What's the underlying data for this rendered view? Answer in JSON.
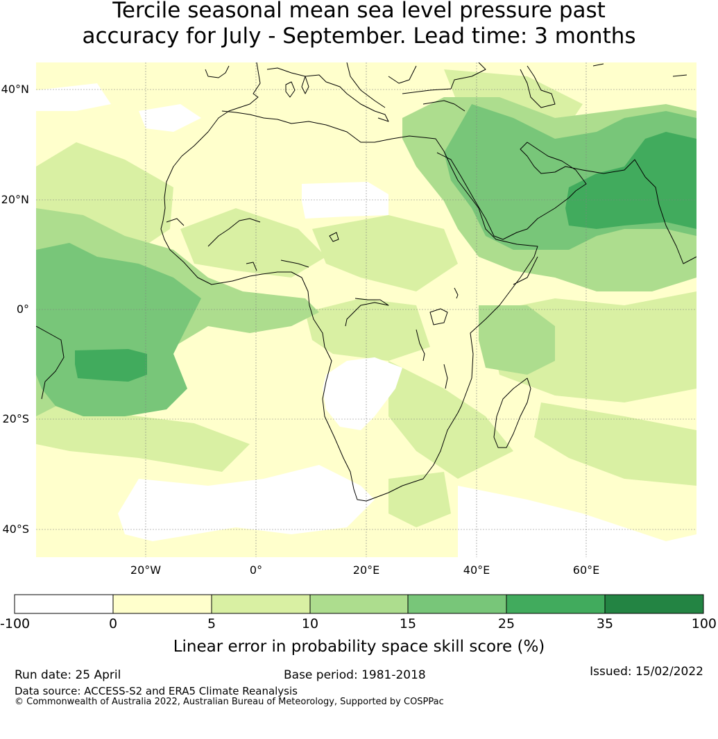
{
  "title_line1": "Tercile seasonal mean sea level pressure past",
  "title_line2": "accuracy for July - September. Lead time: 3 months",
  "lat_ticks": [
    "40°N",
    "20°N",
    "0°",
    "20°S",
    "40°S"
  ],
  "lon_ticks": [
    "20°W",
    "0°",
    "20°E",
    "40°E",
    "60°E"
  ],
  "colorbar": {
    "bounds": [
      "-100",
      "0",
      "5",
      "10",
      "15",
      "25",
      "35",
      "100"
    ],
    "colors": [
      "#ffffff",
      "#ffffcc",
      "#d9f0a3",
      "#addd8e",
      "#78c679",
      "#41ab5d",
      "#238443"
    ],
    "label": "Linear error in probability space skill score (%)"
  },
  "footer": {
    "run_date": "Run date: 25 April",
    "base_period": "Base period: 1981-2018",
    "issued": "Issued: 15/02/2022",
    "data_source": "Data source: ACCESS-S2 and ERA5 Climate Reanalysis",
    "copyright": "© Commonwealth of Australia 2022, Australian Bureau of Meteorology, Supported by COSPPac"
  }
}
